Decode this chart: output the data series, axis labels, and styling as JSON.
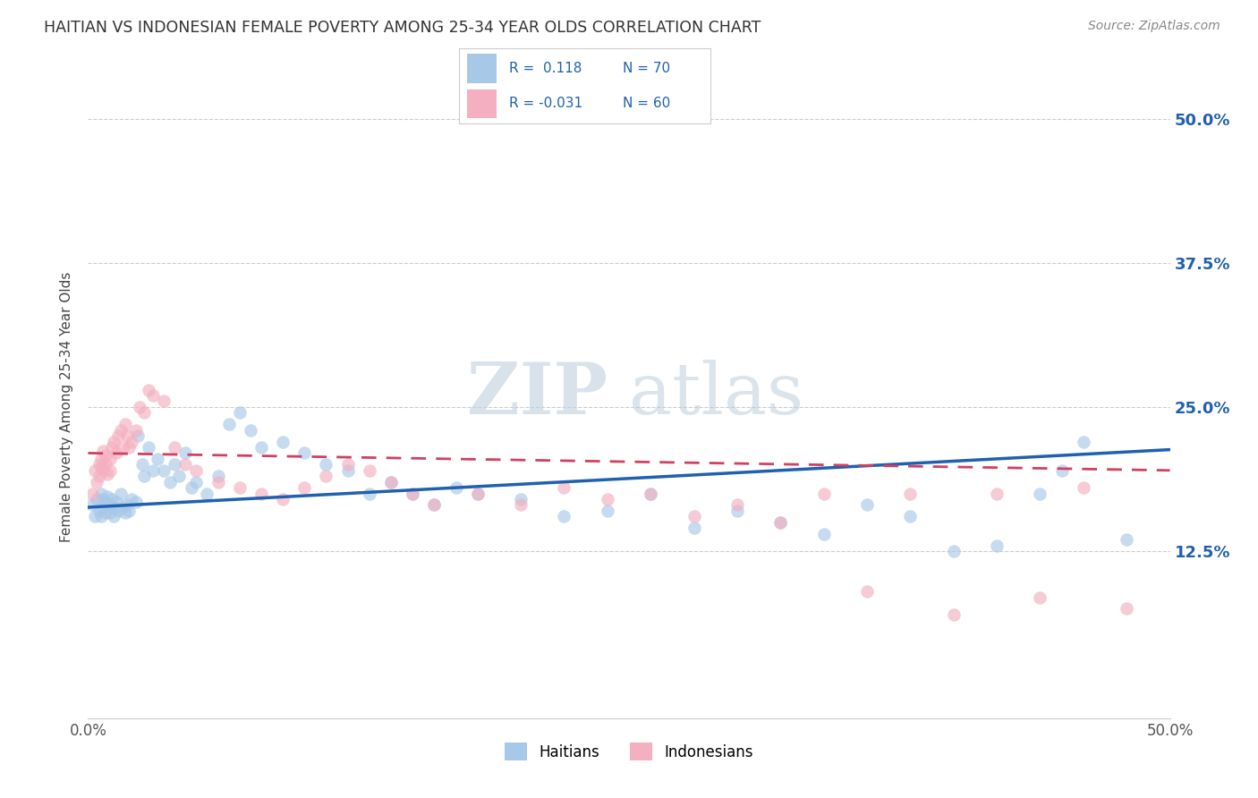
{
  "title": "HAITIAN VS INDONESIAN FEMALE POVERTY AMONG 25-34 YEAR OLDS CORRELATION CHART",
  "source": "Source: ZipAtlas.com",
  "ylabel": "Female Poverty Among 25-34 Year Olds",
  "ytick_labels": [
    "12.5%",
    "25.0%",
    "37.5%",
    "50.0%"
  ],
  "ytick_values": [
    0.125,
    0.25,
    0.375,
    0.5
  ],
  "xmin": 0.0,
  "xmax": 0.5,
  "ymin": -0.02,
  "ymax": 0.52,
  "haitian_R": 0.118,
  "haitian_N": 70,
  "indonesian_R": -0.031,
  "indonesian_N": 60,
  "haitian_color": "#a8c8e8",
  "indonesian_color": "#f4afc0",
  "haitian_line_color": "#2060b0",
  "indonesian_line_color": "#d04060",
  "watermark_color": "#d0dce8",
  "haitian_x": [
    0.002,
    0.003,
    0.004,
    0.005,
    0.006,
    0.006,
    0.007,
    0.007,
    0.008,
    0.008,
    0.009,
    0.01,
    0.01,
    0.011,
    0.012,
    0.012,
    0.013,
    0.014,
    0.015,
    0.016,
    0.017,
    0.018,
    0.019,
    0.02,
    0.022,
    0.023,
    0.025,
    0.026,
    0.028,
    0.03,
    0.032,
    0.035,
    0.038,
    0.04,
    0.042,
    0.045,
    0.048,
    0.05,
    0.055,
    0.06,
    0.065,
    0.07,
    0.075,
    0.08,
    0.09,
    0.1,
    0.11,
    0.12,
    0.13,
    0.14,
    0.15,
    0.16,
    0.17,
    0.18,
    0.2,
    0.22,
    0.24,
    0.26,
    0.28,
    0.3,
    0.32,
    0.34,
    0.36,
    0.38,
    0.4,
    0.42,
    0.44,
    0.45,
    0.46,
    0.48
  ],
  "haitian_y": [
    0.165,
    0.155,
    0.17,
    0.16,
    0.175,
    0.155,
    0.163,
    0.17,
    0.168,
    0.158,
    0.172,
    0.165,
    0.158,
    0.17,
    0.162,
    0.155,
    0.168,
    0.16,
    0.175,
    0.163,
    0.158,
    0.165,
    0.16,
    0.17,
    0.168,
    0.225,
    0.2,
    0.19,
    0.215,
    0.195,
    0.205,
    0.195,
    0.185,
    0.2,
    0.19,
    0.21,
    0.18,
    0.185,
    0.175,
    0.19,
    0.235,
    0.245,
    0.23,
    0.215,
    0.22,
    0.21,
    0.2,
    0.195,
    0.175,
    0.185,
    0.175,
    0.165,
    0.18,
    0.175,
    0.17,
    0.155,
    0.16,
    0.175,
    0.145,
    0.16,
    0.15,
    0.14,
    0.165,
    0.155,
    0.125,
    0.13,
    0.175,
    0.195,
    0.22,
    0.135
  ],
  "indonesian_x": [
    0.002,
    0.003,
    0.004,
    0.005,
    0.005,
    0.006,
    0.006,
    0.007,
    0.007,
    0.008,
    0.008,
    0.009,
    0.01,
    0.01,
    0.011,
    0.012,
    0.013,
    0.014,
    0.015,
    0.016,
    0.017,
    0.018,
    0.019,
    0.02,
    0.022,
    0.024,
    0.026,
    0.028,
    0.03,
    0.035,
    0.04,
    0.045,
    0.05,
    0.06,
    0.07,
    0.08,
    0.09,
    0.1,
    0.11,
    0.12,
    0.13,
    0.14,
    0.15,
    0.16,
    0.18,
    0.2,
    0.22,
    0.24,
    0.26,
    0.28,
    0.3,
    0.32,
    0.34,
    0.36,
    0.38,
    0.4,
    0.42,
    0.44,
    0.46,
    0.48
  ],
  "indonesian_y": [
    0.175,
    0.195,
    0.185,
    0.2,
    0.19,
    0.205,
    0.198,
    0.212,
    0.195,
    0.208,
    0.2,
    0.192,
    0.205,
    0.195,
    0.215,
    0.22,
    0.21,
    0.225,
    0.23,
    0.215,
    0.235,
    0.225,
    0.215,
    0.22,
    0.23,
    0.25,
    0.245,
    0.265,
    0.26,
    0.255,
    0.215,
    0.2,
    0.195,
    0.185,
    0.18,
    0.175,
    0.17,
    0.18,
    0.19,
    0.2,
    0.195,
    0.185,
    0.175,
    0.165,
    0.175,
    0.165,
    0.18,
    0.17,
    0.175,
    0.155,
    0.165,
    0.15,
    0.175,
    0.09,
    0.175,
    0.07,
    0.175,
    0.085,
    0.18,
    0.075
  ],
  "haitian_trend_x": [
    0.0,
    0.5
  ],
  "haitian_trend_y": [
    0.163,
    0.213
  ],
  "indonesian_trend_x": [
    0.0,
    0.5
  ],
  "indonesian_trend_y": [
    0.21,
    0.195
  ]
}
